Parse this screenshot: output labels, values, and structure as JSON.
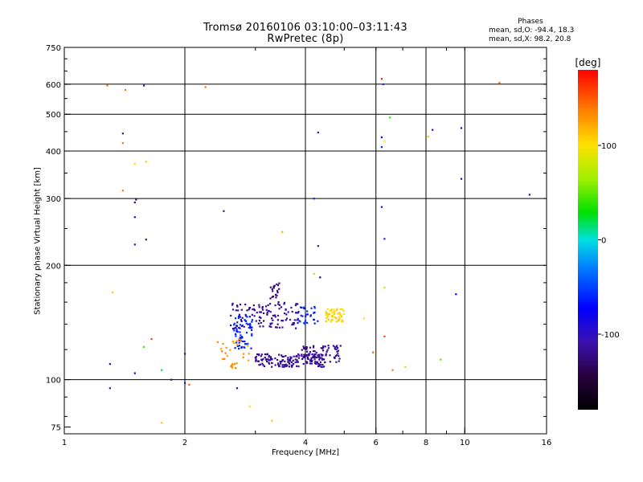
{
  "header": {
    "title": "Tromsø 20160106 03:10:00–03:11:43",
    "subtitle": "RwPretec (8p)"
  },
  "phase_info": {
    "heading": "Phases",
    "o_line": "mean, sd,O: -94.4, 18.3",
    "x_line": "mean, sd,X:  98.2, 20.8"
  },
  "colorbar": {
    "unit_label": "[deg]",
    "range": [
      -180,
      180
    ],
    "ticks": [
      {
        "value": 100,
        "label": "100"
      },
      {
        "value": 0,
        "label": "0"
      },
      {
        "value": -100,
        "label": "-100"
      }
    ]
  },
  "chart_data": {
    "type": "scatter",
    "title": "Tromsø 20160106 03:10:00–03:11:43",
    "subtitle": "RwPretec (8p)",
    "xlabel": "Frequency [MHz]",
    "ylabel": "Stationary phase Virtual Height [km]",
    "x_scale": "log",
    "y_scale": "log",
    "xlim": [
      1,
      16
    ],
    "ylim": [
      72,
      750
    ],
    "x_ticks": [
      {
        "value": 1,
        "label": "1"
      },
      {
        "value": 2,
        "label": "2"
      },
      {
        "value": 4,
        "label": "4"
      },
      {
        "value": 6,
        "label": "6"
      },
      {
        "value": 8,
        "label": "8"
      },
      {
        "value": 10,
        "label": "10"
      },
      {
        "value": 16,
        "label": "16"
      }
    ],
    "y_ticks": [
      {
        "value": 75,
        "label": "75"
      },
      {
        "value": 100,
        "label": "100"
      },
      {
        "value": 200,
        "label": "200"
      },
      {
        "value": 300,
        "label": "300"
      },
      {
        "value": 400,
        "label": "400"
      },
      {
        "value": 500,
        "label": "500"
      },
      {
        "value": 600,
        "label": "600"
      },
      {
        "value": 750,
        "label": "750"
      }
    ],
    "x_gridlines": [
      2,
      4,
      6,
      8,
      10
    ],
    "y_gridlines": [
      100,
      200,
      300,
      400,
      500,
      600
    ],
    "points": [
      {
        "x": 1.28,
        "y": 595,
        "phase": 140
      },
      {
        "x": 1.42,
        "y": 580,
        "phase": 140
      },
      {
        "x": 1.58,
        "y": 595,
        "phase": -110
      },
      {
        "x": 2.25,
        "y": 590,
        "phase": 140
      },
      {
        "x": 1.4,
        "y": 445,
        "phase": -110
      },
      {
        "x": 1.4,
        "y": 420,
        "phase": 140
      },
      {
        "x": 1.5,
        "y": 370,
        "phase": 100
      },
      {
        "x": 1.6,
        "y": 375,
        "phase": 110
      },
      {
        "x": 1.4,
        "y": 315,
        "phase": 140
      },
      {
        "x": 1.51,
        "y": 298,
        "phase": -120
      },
      {
        "x": 1.5,
        "y": 293,
        "phase": -120
      },
      {
        "x": 1.5,
        "y": 268,
        "phase": -120
      },
      {
        "x": 1.6,
        "y": 234,
        "phase": -120
      },
      {
        "x": 1.5,
        "y": 227,
        "phase": -120
      },
      {
        "x": 2.5,
        "y": 278,
        "phase": -110
      },
      {
        "x": 1.32,
        "y": 170,
        "phase": 110
      },
      {
        "x": 1.3,
        "y": 110,
        "phase": -100
      },
      {
        "x": 1.5,
        "y": 104,
        "phase": -120
      },
      {
        "x": 1.3,
        "y": 95,
        "phase": -110
      },
      {
        "x": 1.58,
        "y": 122,
        "phase": 40
      },
      {
        "x": 1.65,
        "y": 128,
        "phase": 160
      },
      {
        "x": 1.85,
        "y": 100,
        "phase": -120
      },
      {
        "x": 1.75,
        "y": 106,
        "phase": 20
      },
      {
        "x": 2.0,
        "y": 98,
        "phase": -120
      },
      {
        "x": 2.0,
        "y": 117,
        "phase": -110
      },
      {
        "x": 1.75,
        "y": 77,
        "phase": 110
      },
      {
        "x": 2.05,
        "y": 97,
        "phase": 150
      },
      {
        "x": 2.7,
        "y": 95,
        "phase": -100
      },
      {
        "x": 2.9,
        "y": 85,
        "phase": 100
      },
      {
        "x": 3.3,
        "y": 78,
        "phase": 110
      },
      {
        "x": 3.5,
        "y": 245,
        "phase": 120
      },
      {
        "x": 4.3,
        "y": 448,
        "phase": -110
      },
      {
        "x": 4.2,
        "y": 300,
        "phase": -60
      },
      {
        "x": 4.3,
        "y": 225,
        "phase": -120
      },
      {
        "x": 4.35,
        "y": 186,
        "phase": -140
      },
      {
        "x": 4.2,
        "y": 190,
        "phase": 110
      },
      {
        "x": 6.2,
        "y": 620,
        "phase": 170
      },
      {
        "x": 6.25,
        "y": 600,
        "phase": -60
      },
      {
        "x": 6.2,
        "y": 435,
        "phase": -70
      },
      {
        "x": 6.3,
        "y": 425,
        "phase": 100
      },
      {
        "x": 6.5,
        "y": 490,
        "phase": 40
      },
      {
        "x": 6.2,
        "y": 410,
        "phase": -60
      },
      {
        "x": 6.2,
        "y": 285,
        "phase": -110
      },
      {
        "x": 6.3,
        "y": 235,
        "phase": -60
      },
      {
        "x": 6.3,
        "y": 175,
        "phase": 110
      },
      {
        "x": 6.3,
        "y": 130,
        "phase": 160
      },
      {
        "x": 6.6,
        "y": 106,
        "phase": 140
      },
      {
        "x": 7.1,
        "y": 108,
        "phase": 110
      },
      {
        "x": 8.3,
        "y": 455,
        "phase": -110
      },
      {
        "x": 8.1,
        "y": 437,
        "phase": 110
      },
      {
        "x": 9.8,
        "y": 460,
        "phase": -120
      },
      {
        "x": 9.8,
        "y": 338,
        "phase": -120
      },
      {
        "x": 8.7,
        "y": 113,
        "phase": 50
      },
      {
        "x": 9.5,
        "y": 168,
        "phase": -70
      },
      {
        "x": 12.2,
        "y": 605,
        "phase": 150
      },
      {
        "x": 14.5,
        "y": 307,
        "phase": -100
      },
      {
        "x": 5.6,
        "y": 145,
        "phase": 100
      },
      {
        "x": 5.9,
        "y": 118,
        "phase": 150
      }
    ],
    "clusters": [
      {
        "x_range": [
          2.6,
          3.9
        ],
        "y_range": [
          136,
          160
        ],
        "count": 120,
        "phase": -115
      },
      {
        "x_range": [
          2.65,
          2.95
        ],
        "y_range": [
          120,
          148
        ],
        "count": 60,
        "phase": -60
      },
      {
        "x_range": [
          3.0,
          4.5
        ],
        "y_range": [
          108,
          117
        ],
        "count": 160,
        "phase": -118
      },
      {
        "x_range": [
          3.9,
          4.9
        ],
        "y_range": [
          111,
          123
        ],
        "count": 70,
        "phase": -118
      },
      {
        "x_range": [
          3.8,
          4.3
        ],
        "y_range": [
          140,
          156
        ],
        "count": 30,
        "phase": -60
      },
      {
        "x_range": [
          4.5,
          5.0
        ],
        "y_range": [
          142,
          154
        ],
        "count": 50,
        "phase": 105
      },
      {
        "x_range": [
          2.4,
          2.9
        ],
        "y_range": [
          106,
          128
        ],
        "count": 30,
        "phase": 130
      },
      {
        "x_range": [
          3.25,
          3.45
        ],
        "y_range": [
          160,
          182
        ],
        "count": 20,
        "phase": -125
      }
    ]
  }
}
